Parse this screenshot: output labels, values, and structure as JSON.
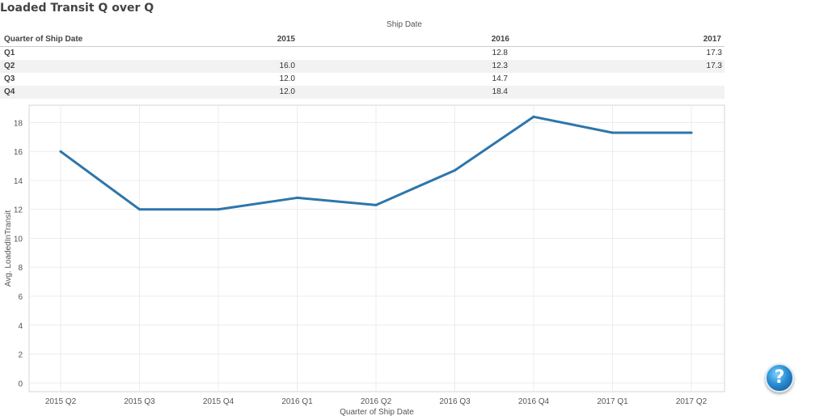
{
  "title": "Loaded Transit Q over Q",
  "table": {
    "column_group_label": "Ship Date",
    "row_header_label": "Quarter of Ship Date",
    "years": [
      "2015",
      "2016",
      "2017"
    ],
    "rows": [
      {
        "quarter": "Q1",
        "values": [
          "",
          "12.8",
          "17.3"
        ]
      },
      {
        "quarter": "Q2",
        "values": [
          "16.0",
          "12.3",
          "17.3"
        ]
      },
      {
        "quarter": "Q3",
        "values": [
          "12.0",
          "14.7",
          ""
        ]
      },
      {
        "quarter": "Q4",
        "values": [
          "12.0",
          "18.4",
          ""
        ]
      }
    ]
  },
  "chart_data": {
    "type": "line",
    "categories": [
      "2015 Q2",
      "2015 Q3",
      "2015 Q4",
      "2016 Q1",
      "2016 Q2",
      "2016 Q3",
      "2016 Q4",
      "2017 Q1",
      "2017 Q2"
    ],
    "values": [
      16.0,
      12.0,
      12.0,
      12.8,
      12.3,
      14.7,
      18.4,
      17.3,
      17.3
    ],
    "xlabel": "Quarter of Ship Date",
    "ylabel": "Avg. LoadedInTransit",
    "yticks": [
      0,
      2,
      4,
      6,
      8,
      10,
      12,
      14,
      16,
      18
    ],
    "ylim": [
      -0.6,
      19.2
    ],
    "grid": true,
    "line_color": "#2e76ab"
  },
  "help_label": "?"
}
